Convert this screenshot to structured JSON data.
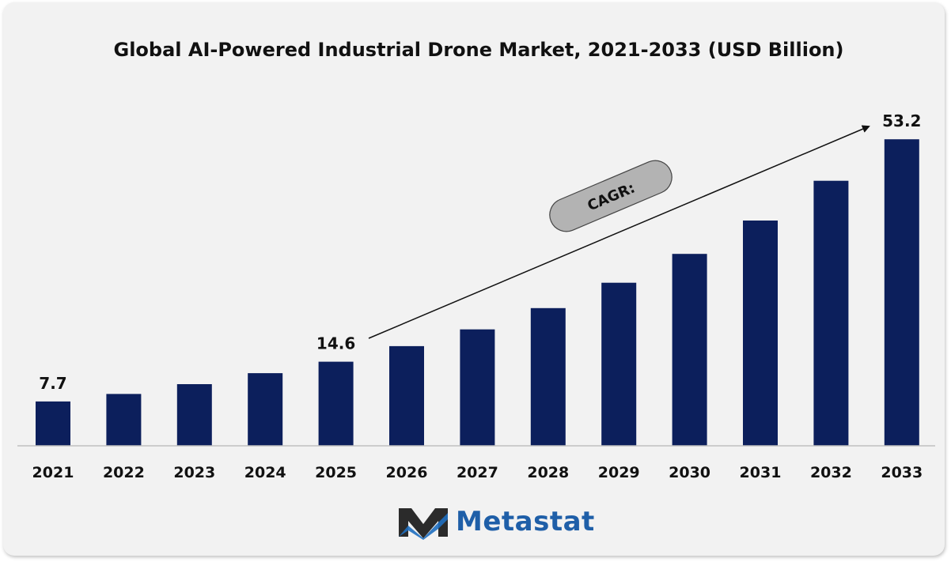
{
  "chart_data": {
    "type": "bar",
    "title": "Global AI-Powered Industrial Drone Market, 2021-2033 (USD Billion)",
    "categories": [
      "2021",
      "2022",
      "2023",
      "2024",
      "2025",
      "2026",
      "2027",
      "2028",
      "2029",
      "2030",
      "2031",
      "2032",
      "2033"
    ],
    "values": [
      7.7,
      9.0,
      10.7,
      12.6,
      14.6,
      17.3,
      20.2,
      23.9,
      28.3,
      33.3,
      39.1,
      46.0,
      53.2
    ],
    "data_labels": [
      {
        "category": "2021",
        "text": "7.7"
      },
      {
        "category": "2025",
        "text": "14.6"
      },
      {
        "category": "2033",
        "text": "53.2"
      }
    ],
    "annotation": "CAGR:",
    "bar_color": "#0c1f5c",
    "ylim": [
      0,
      55
    ],
    "grid": false,
    "legend": "none"
  },
  "brand": {
    "name": "Metastat",
    "color": "#1f5fa8"
  }
}
